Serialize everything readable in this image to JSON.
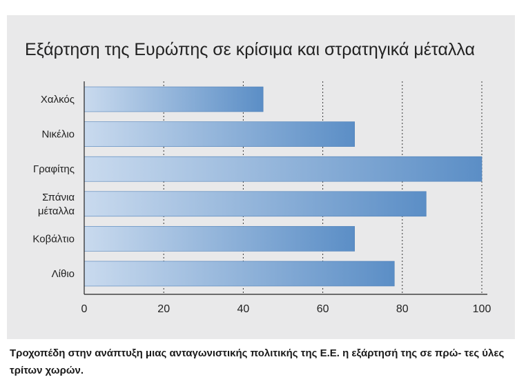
{
  "title": "Εξάρτηση της Ευρώπης σε κρίσιμα και στρατηγικά μέταλλα",
  "caption": "Τροχοπέδη στην ανάπτυξη μιας ανταγωνιστικής πολιτικής της Ε.Ε. η εξάρτησή της σε πρώ- τες ύλες τρίτων χωρών.",
  "colors": {
    "panel": "#e9e9ea",
    "bar_start": "#c9daee",
    "bar_end": "#5b8ec6",
    "bar_border": "#4c7fb8",
    "axis": "#222222"
  },
  "chart_data": {
    "type": "bar",
    "orientation": "horizontal",
    "categories": [
      [
        "Χαλκός"
      ],
      [
        "Νικέλιο"
      ],
      [
        "Γραφίτης"
      ],
      [
        "Σπάνια",
        "μέταλλα"
      ],
      [
        "Κοβάλτιο"
      ],
      [
        "Λίθιο"
      ]
    ],
    "values": [
      45,
      68,
      100,
      86,
      68,
      78
    ],
    "xlim": [
      0,
      100
    ],
    "xticks": [
      0,
      20,
      40,
      60,
      80,
      100
    ],
    "grid": "vertical-dotted",
    "title": "Εξάρτηση της Ευρώπης σε κρίσιμα και στρατηγικά μέταλλα",
    "xlabel": "",
    "ylabel": ""
  }
}
